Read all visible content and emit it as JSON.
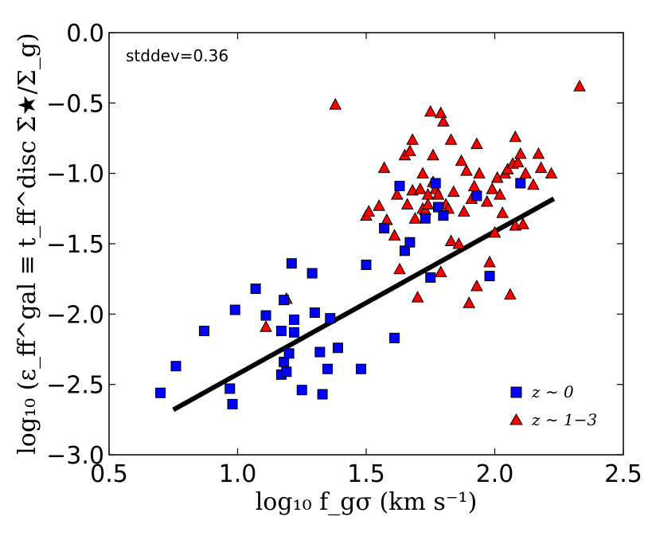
{
  "chart_data": {
    "type": "scatter",
    "xlabel": "log₁₀ f_gσ (km s⁻¹)",
    "ylabel": "log₁₀ (ε_ff^gal ≡ t_ff^disc Σ̇★/Σ_g)",
    "xlim": [
      0.5,
      2.5
    ],
    "ylim": [
      -3.0,
      0.0
    ],
    "xticks": [
      0.5,
      1.0,
      1.5,
      2.0,
      2.5
    ],
    "xtick_labels": [
      "0.5",
      "1.0",
      "1.5",
      "2.0",
      "2.5"
    ],
    "yticks": [
      -3.0,
      -2.5,
      -2.0,
      -1.5,
      -1.0,
      -0.5,
      0.0
    ],
    "ytick_labels": [
      "−3.0",
      "−2.5",
      "−2.0",
      "−1.5",
      "−1.0",
      "−0.5",
      "0.0"
    ],
    "annotation": "stddev=0.36",
    "legend_position": "lower-right",
    "colors": {
      "squares": "#0000ff",
      "triangles": "#ff0000",
      "line": "#000000"
    },
    "fit_line": {
      "x": [
        0.75,
        2.23
      ],
      "y": [
        -2.68,
        -1.18
      ]
    },
    "series": [
      {
        "name": "z ∼ 0",
        "marker": "square",
        "points": [
          [
            0.7,
            -2.56
          ],
          [
            0.76,
            -2.37
          ],
          [
            0.87,
            -2.12
          ],
          [
            0.97,
            -2.53
          ],
          [
            0.98,
            -2.64
          ],
          [
            0.99,
            -1.97
          ],
          [
            1.07,
            -1.82
          ],
          [
            1.11,
            -2.01
          ],
          [
            1.17,
            -2.12
          ],
          [
            1.17,
            -2.43
          ],
          [
            1.18,
            -2.34
          ],
          [
            1.18,
            -1.9
          ],
          [
            1.19,
            -2.41
          ],
          [
            1.2,
            -2.28
          ],
          [
            1.21,
            -1.64
          ],
          [
            1.22,
            -2.04
          ],
          [
            1.22,
            -2.13
          ],
          [
            1.25,
            -2.54
          ],
          [
            1.29,
            -1.71
          ],
          [
            1.3,
            -1.99
          ],
          [
            1.32,
            -2.27
          ],
          [
            1.33,
            -2.57
          ],
          [
            1.35,
            -2.39
          ],
          [
            1.36,
            -2.03
          ],
          [
            1.39,
            -2.24
          ],
          [
            1.48,
            -2.39
          ],
          [
            1.5,
            -1.65
          ],
          [
            1.57,
            -1.39
          ],
          [
            1.61,
            -2.17
          ],
          [
            1.63,
            -1.09
          ],
          [
            1.65,
            -1.55
          ],
          [
            1.67,
            -1.49
          ],
          [
            1.73,
            -1.32
          ],
          [
            1.75,
            -1.74
          ],
          [
            1.77,
            -1.07
          ],
          [
            1.78,
            -1.24
          ],
          [
            1.8,
            -1.3
          ],
          [
            1.93,
            -1.16
          ],
          [
            1.98,
            -1.73
          ],
          [
            2.1,
            -1.07
          ]
        ]
      },
      {
        "name": "z ∼ 1−3",
        "marker": "triangle",
        "points": [
          [
            1.11,
            -2.09
          ],
          [
            1.19,
            -1.89
          ],
          [
            1.38,
            -0.51
          ],
          [
            1.5,
            -1.3
          ],
          [
            1.51,
            -1.27
          ],
          [
            1.55,
            -1.23
          ],
          [
            1.57,
            -0.96
          ],
          [
            1.58,
            -1.33
          ],
          [
            1.61,
            -1.44
          ],
          [
            1.62,
            -1.15
          ],
          [
            1.63,
            -1.68
          ],
          [
            1.65,
            -0.87
          ],
          [
            1.66,
            -1.22
          ],
          [
            1.67,
            -0.84
          ],
          [
            1.68,
            -0.76
          ],
          [
            1.68,
            -1.12
          ],
          [
            1.69,
            -1.32
          ],
          [
            1.7,
            -1.88
          ],
          [
            1.71,
            -1.11
          ],
          [
            1.72,
            -1.0
          ],
          [
            1.72,
            -1.25
          ],
          [
            1.73,
            -1.26
          ],
          [
            1.74,
            -1.15
          ],
          [
            1.74,
            -1.22
          ],
          [
            1.75,
            -0.56
          ],
          [
            1.76,
            -0.87
          ],
          [
            1.76,
            -1.06
          ],
          [
            1.77,
            -1.11
          ],
          [
            1.78,
            -1.15
          ],
          [
            1.79,
            -0.57
          ],
          [
            1.79,
            -1.7
          ],
          [
            1.8,
            -0.63
          ],
          [
            1.81,
            -1.22
          ],
          [
            1.82,
            -1.25
          ],
          [
            1.83,
            -1.48
          ],
          [
            1.83,
            -0.76
          ],
          [
            1.84,
            -1.13
          ],
          [
            1.86,
            -1.5
          ],
          [
            1.87,
            -0.91
          ],
          [
            1.88,
            -1.27
          ],
          [
            1.89,
            -0.98
          ],
          [
            1.9,
            -1.92
          ],
          [
            1.91,
            -1.18
          ],
          [
            1.92,
            -1.09
          ],
          [
            1.93,
            -0.79
          ],
          [
            1.93,
            -1.8
          ],
          [
            1.94,
            -1.0
          ],
          [
            1.97,
            -1.2
          ],
          [
            1.98,
            -1.63
          ],
          [
            1.99,
            -1.11
          ],
          [
            2.0,
            -1.42
          ],
          [
            2.01,
            -1.03
          ],
          [
            2.02,
            -1.15
          ],
          [
            2.03,
            -1.28
          ],
          [
            2.04,
            -1.0
          ],
          [
            2.05,
            -0.97
          ],
          [
            2.06,
            -1.86
          ],
          [
            2.07,
            -0.93
          ],
          [
            2.08,
            -1.37
          ],
          [
            2.08,
            -0.74
          ],
          [
            2.09,
            -0.92
          ],
          [
            2.1,
            -0.86
          ],
          [
            2.11,
            -1.36
          ],
          [
            2.12,
            -1.0
          ],
          [
            2.15,
            -1.08
          ],
          [
            2.17,
            -0.86
          ],
          [
            2.18,
            -0.96
          ],
          [
            2.22,
            -1.0
          ],
          [
            2.33,
            -0.38
          ]
        ]
      }
    ]
  }
}
